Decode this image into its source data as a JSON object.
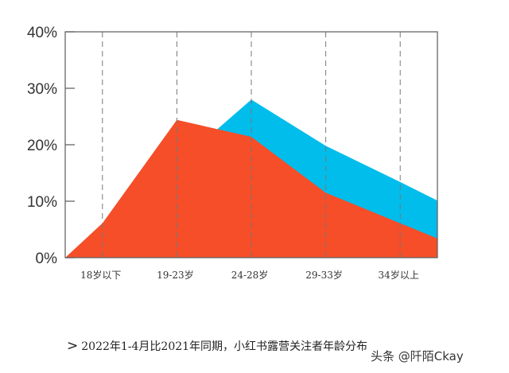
{
  "chart_data": {
    "type": "area",
    "title": "",
    "xlabel": "",
    "ylabel": "",
    "categories": [
      "18岁以下",
      "19-23岁",
      "24-28岁",
      "29-33岁",
      "34岁以上"
    ],
    "yticks": [
      "0%",
      "10%",
      "20%",
      "30%",
      "40%"
    ],
    "ylim": [
      0,
      40
    ],
    "grid": "vertical dashed at categories",
    "legend": "none",
    "series": [
      {
        "color": "#00BDEB",
        "start": 0,
        "values": [
          3,
          16.5,
          28.0,
          19.8,
          13.4
        ],
        "end": 10.1
      },
      {
        "color": "#F54E28",
        "start": 0,
        "values": [
          6.1,
          24.4,
          21.4,
          11.5,
          6.1
        ],
        "end": 3.4
      }
    ]
  },
  "caption": {
    "arrow": ">",
    "text": "2022年1-4月比2021年同期，小红书露营关注者年龄分布"
  },
  "watermark": "头条 @阡陌Ckay"
}
